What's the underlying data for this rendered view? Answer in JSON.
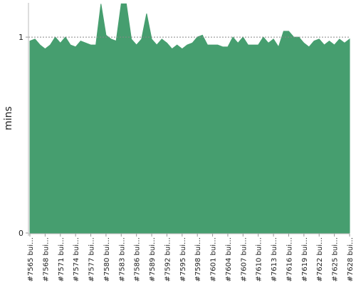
{
  "chart_data": {
    "type": "area",
    "y_label": "mins",
    "color": "#469e6f",
    "categories": [
      "#7565 bui…",
      null,
      null,
      "#7568 bui…",
      null,
      null,
      "#7571 bui…",
      null,
      null,
      "#7574 bui…",
      null,
      null,
      "#7577 bui…",
      null,
      null,
      "#7580 bui…",
      null,
      null,
      "#7583 bui…",
      null,
      null,
      "#7586 bui…",
      null,
      null,
      "#7589 bui…",
      null,
      null,
      "#7592 bui…",
      null,
      null,
      "#7595 bui…",
      null,
      null,
      "#7598 bui…",
      null,
      null,
      "#7601 bui…",
      null,
      null,
      "#7604 bui…",
      null,
      null,
      "#7607 bui…",
      null,
      null,
      "#7610 bui…",
      null,
      null,
      "#7613 bui…",
      null,
      null,
      "#7616 bui…",
      null,
      null,
      "#7619 bui…",
      null,
      null,
      "#7622 bui…",
      null,
      null,
      "#7625 bui…",
      null,
      null,
      "#7628 bui…"
    ],
    "values": [
      0.98,
      0.99,
      0.96,
      0.94,
      0.96,
      1.0,
      0.97,
      1.0,
      0.96,
      0.95,
      0.98,
      0.97,
      0.96,
      0.96,
      1.17,
      1.01,
      0.99,
      0.98,
      1.17,
      1.17,
      0.99,
      0.96,
      0.99,
      1.12,
      0.99,
      0.96,
      0.99,
      0.97,
      0.94,
      0.96,
      0.94,
      0.96,
      0.97,
      1.0,
      1.01,
      0.96,
      0.96,
      0.96,
      0.95,
      0.95,
      1.0,
      0.97,
      1.0,
      0.96,
      0.96,
      0.96,
      1.0,
      0.97,
      0.99,
      0.95,
      1.03,
      1.03,
      1.0,
      1.0,
      0.97,
      0.95,
      0.98,
      0.99,
      0.96,
      0.98,
      0.96,
      0.99,
      0.97,
      0.99
    ],
    "ylim": [
      0,
      1.175
    ],
    "yticks": [
      0,
      1
    ],
    "grid": true
  }
}
